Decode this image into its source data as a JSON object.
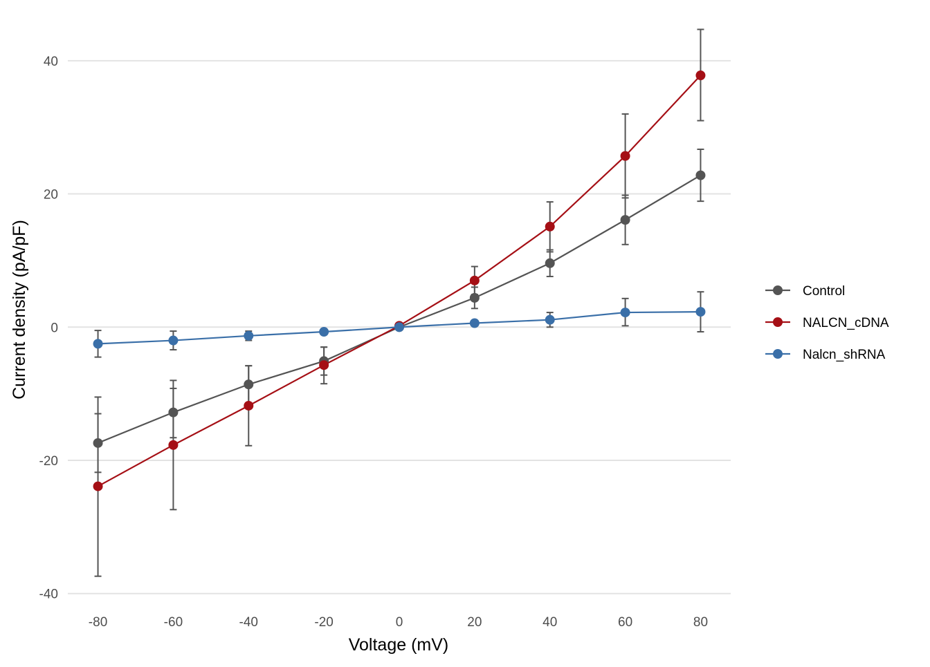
{
  "chart_data": {
    "type": "line",
    "xlabel": "Voltage (mV)",
    "ylabel": "Current density (pA/pF)",
    "x": [
      -80,
      -60,
      -40,
      -20,
      0,
      20,
      40,
      60,
      80
    ],
    "xlim": [
      -88,
      88
    ],
    "ylim": [
      -42,
      46
    ],
    "x_ticks": [
      -80,
      -60,
      -40,
      -20,
      0,
      20,
      40,
      60,
      80
    ],
    "y_ticks": [
      -40,
      -20,
      0,
      20,
      40
    ],
    "grid": "horizontal",
    "legend_position": "right",
    "errorbar_color": "#545454",
    "series": [
      {
        "name": "Control",
        "color": "#545454",
        "values": [
          -17.4,
          -12.8,
          -8.6,
          -5.1,
          0.0,
          4.4,
          9.6,
          16.1,
          22.8
        ],
        "err_low": [
          -21.8,
          -16.6,
          -11.6,
          -7.2,
          -0.2,
          2.8,
          7.6,
          12.4,
          18.9
        ],
        "err_high": [
          -13.0,
          -9.2,
          -5.8,
          -3.0,
          0.2,
          6.0,
          11.6,
          19.8,
          26.7
        ]
      },
      {
        "name": "NALCN_cDNA",
        "color": "#a50f15",
        "values": [
          -23.9,
          -17.7,
          -11.8,
          -5.7,
          0.2,
          7.0,
          15.1,
          25.7,
          37.8
        ],
        "err_low": [
          -37.4,
          -27.4,
          -17.8,
          -8.5,
          0.0,
          4.9,
          11.3,
          19.4,
          31.0
        ],
        "err_high": [
          -10.5,
          -8.0,
          -5.8,
          -3.0,
          0.4,
          9.1,
          18.8,
          32.0,
          44.7
        ]
      },
      {
        "name": "Nalcn_shRNA",
        "color": "#3a6fa8",
        "values": [
          -2.5,
          -2.0,
          -1.3,
          -0.7,
          0.0,
          0.6,
          1.1,
          2.2,
          2.3
        ],
        "err_low": [
          -4.5,
          -3.4,
          -2.0,
          -0.9,
          -0.1,
          0.4,
          0.0,
          0.2,
          -0.7
        ],
        "err_high": [
          -0.5,
          -0.6,
          -0.6,
          -0.5,
          0.1,
          0.8,
          2.2,
          4.3,
          5.3
        ]
      }
    ]
  }
}
